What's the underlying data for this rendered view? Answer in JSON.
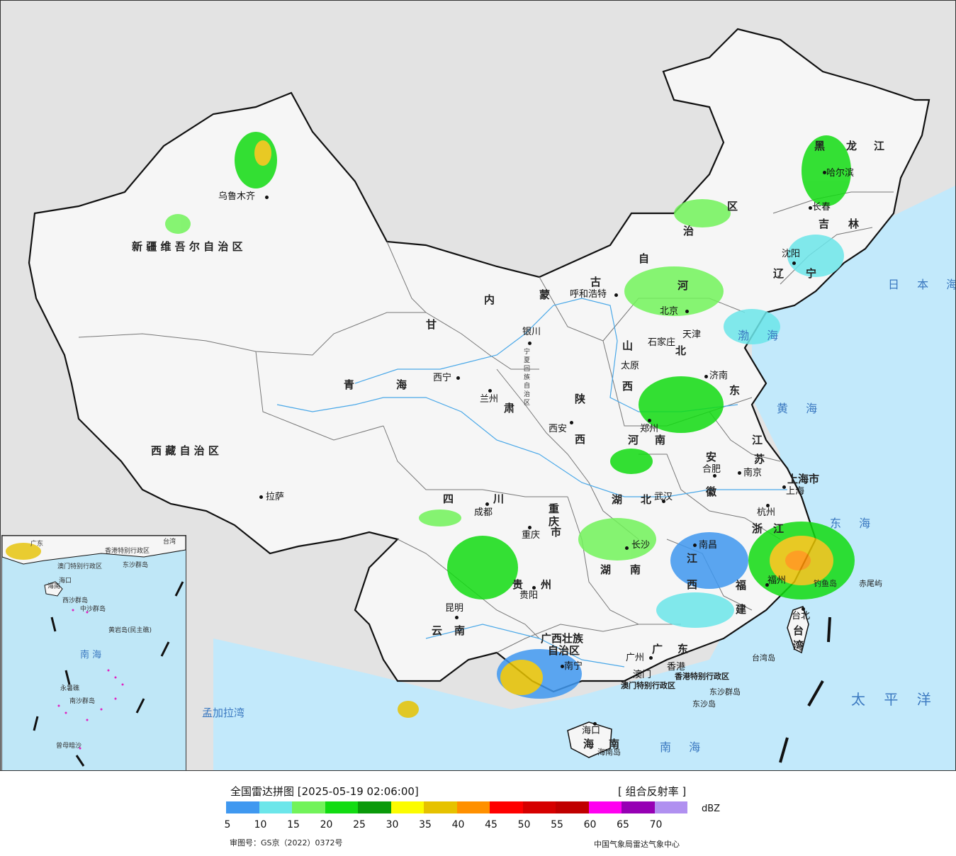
{
  "map": {
    "provinces": [
      "新 疆 维 吾 尔 自 治 区",
      "西 藏 自 治 区",
      "青",
      "海",
      "甘",
      "肃",
      "内",
      "蒙",
      "古",
      "自",
      "治",
      "区",
      "黑",
      "龙",
      "江",
      "吉",
      "林",
      "辽",
      "宁",
      "河",
      "北",
      "山",
      "西",
      "东",
      "陕",
      "西",
      "河",
      "南",
      "四",
      "川",
      "重",
      "庆",
      "市",
      "湖",
      "北",
      "湖",
      "南",
      "江",
      "西",
      "浙",
      "江",
      "江",
      "苏",
      "安",
      "徽",
      "福",
      "建",
      "广",
      "东",
      "广西壮族",
      "自治区",
      "云",
      "南",
      "贵",
      "州",
      "海",
      "南",
      "台",
      "湾",
      "上海市",
      "宁夏回族自治区"
    ],
    "cities": [
      "乌鲁木齐",
      "呼和浩特",
      "北京",
      "天津",
      "石家庄",
      "太原",
      "济南",
      "郑州",
      "西安",
      "银川",
      "西宁",
      "兰州",
      "拉萨",
      "成都",
      "重庆",
      "武汉",
      "合肥",
      "南京",
      "上海",
      "杭州",
      "南昌",
      "长沙",
      "福州",
      "贵阳",
      "昆明",
      "南宁",
      "广州",
      "香港",
      "澳门",
      "海口",
      "台北",
      "哈尔滨",
      "长春",
      "沈阳"
    ],
    "special": [
      "香港特别行政区",
      "澳门特别行政区",
      "东沙群岛",
      "东沙岛",
      "海南岛",
      "钓鱼岛",
      "赤尾屿",
      "台湾岛"
    ],
    "seas": [
      "日 本 海",
      "渤 海",
      "黄 海",
      "东 海",
      "太 平 洋",
      "南 海",
      "孟加拉湾"
    ],
    "inset_labels": [
      "广东",
      "台湾",
      "海口",
      "香港特别行政区",
      "澳门特别行政区",
      "东沙群岛",
      "海南",
      "西沙群岛",
      "中沙群岛",
      "黄岩岛(民主礁)",
      "南 海",
      "永暑礁",
      "南沙群岛",
      "曾母暗沙"
    ]
  },
  "legend": {
    "title": "全国雷达拼图 [2025-05-19 02:06:00]",
    "product": "[ 组合反射率 ]",
    "unit": "dBZ",
    "ticks": [
      "5",
      "10",
      "15",
      "20",
      "25",
      "30",
      "35",
      "40",
      "45",
      "50",
      "55",
      "60",
      "65",
      "70"
    ],
    "colors": [
      "#3f98f0",
      "#6ce6ea",
      "#72f35a",
      "#12dc12",
      "#0a9a0a",
      "#fcfc00",
      "#e6c200",
      "#ff9000",
      "#ff0000",
      "#d60000",
      "#c00000",
      "#ff00f0",
      "#9600b4",
      "#b090f0"
    ],
    "approval": "审图号：GS京（2022）0372号",
    "producer": "中国气象局雷达气象中心"
  }
}
